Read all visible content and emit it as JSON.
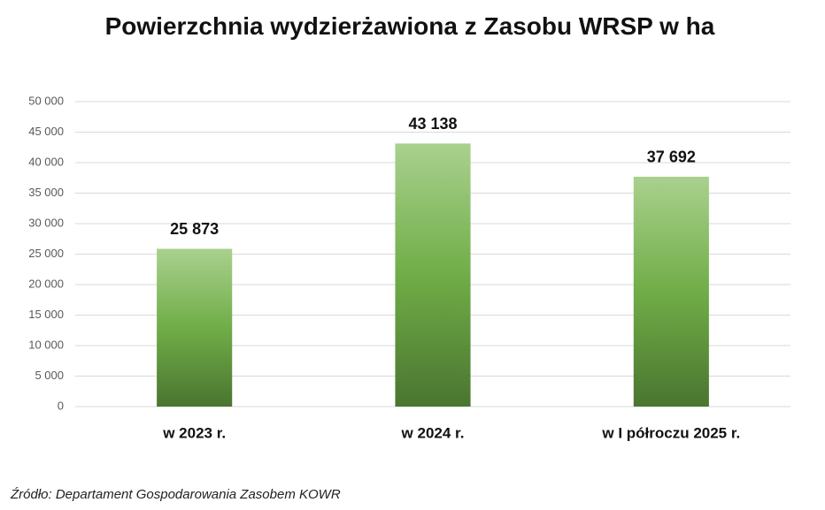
{
  "chart_data": {
    "type": "bar",
    "title": "Powierzchnia wydzierżawiona z Zasobu WRSP w ha",
    "categories": [
      "w 2023 r.",
      "w 2024 r.",
      "w I półroczu 2025 r."
    ],
    "values": [
      25873,
      43138,
      37692
    ],
    "value_labels": [
      "25 873",
      "43 138",
      "37 692"
    ],
    "color": "#70ad47",
    "ylim": [
      0,
      50000
    ],
    "yticks": [
      0,
      {
        "value": 5000,
        "label": "5 000"
      },
      {
        "value": 10000,
        "label": "10 000"
      },
      {
        "value": 15000,
        "label": "15 000"
      },
      {
        "value": 20000,
        "label": "20 000"
      },
      {
        "value": 25000,
        "label": "25 000"
      },
      {
        "value": 30000,
        "label": "30 000"
      },
      {
        "value": 35000,
        "label": "35 000"
      },
      {
        "value": 40000,
        "label": "40 000"
      },
      {
        "value": 45000,
        "label": "45 000"
      },
      {
        "value": 50000,
        "label": "50 000"
      }
    ],
    "grid": true,
    "source": "Źródło: Departament Gospodarowania Zasobem KOWR"
  }
}
